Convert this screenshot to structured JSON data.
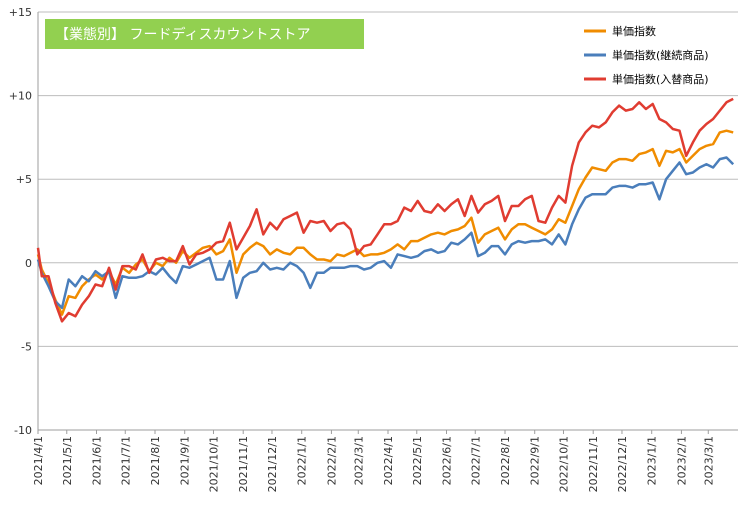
{
  "chart_data": {
    "type": "line",
    "title": "【業態別】 フードディスカウントストア",
    "title_bg": "#92d050",
    "ylim": [
      -10,
      15
    ],
    "yticks": [
      -10,
      -5,
      0,
      5,
      10,
      15
    ],
    "ytick_labels": [
      "-10",
      "-5",
      "0",
      "+5",
      "+10",
      "+15"
    ],
    "grid": "horizontal",
    "legend_position": "top-right",
    "xtick_labels": [
      "2021/4/1",
      "2021/5/1",
      "2021/6/1",
      "2021/7/1",
      "2021/8/1",
      "2021/9/1",
      "2021/10/1",
      "2021/11/1",
      "2021/12/1",
      "2022/1/1",
      "2022/2/1",
      "2022/3/1",
      "2022/4/1",
      "2022/5/1",
      "2022/6/1",
      "2022/7/1",
      "2022/8/1",
      "2022/9/1",
      "2022/10/1",
      "2022/11/1",
      "2022/12/1",
      "2023/1/1",
      "2023/2/1",
      "2023/3/1"
    ],
    "x": [
      "2021-04-01",
      "2021-04-05",
      "2021-04-12",
      "2021-04-19",
      "2021-04-26",
      "2021-05-03",
      "2021-05-10",
      "2021-05-17",
      "2021-05-24",
      "2021-05-31",
      "2021-06-07",
      "2021-06-14",
      "2021-06-21",
      "2021-06-28",
      "2021-07-05",
      "2021-07-12",
      "2021-07-19",
      "2021-07-26",
      "2021-08-02",
      "2021-08-09",
      "2021-08-16",
      "2021-08-23",
      "2021-08-30",
      "2021-09-06",
      "2021-09-13",
      "2021-09-20",
      "2021-09-27",
      "2021-10-04",
      "2021-10-11",
      "2021-10-18",
      "2021-10-25",
      "2021-11-01",
      "2021-11-08",
      "2021-11-15",
      "2021-11-22",
      "2021-11-29",
      "2021-12-06",
      "2021-12-13",
      "2021-12-20",
      "2021-12-27",
      "2022-01-03",
      "2022-01-10",
      "2022-01-17",
      "2022-01-24",
      "2022-01-31",
      "2022-02-07",
      "2022-02-14",
      "2022-02-21",
      "2022-02-28",
      "2022-03-07",
      "2022-03-14",
      "2022-03-21",
      "2022-03-28",
      "2022-04-04",
      "2022-04-11",
      "2022-04-18",
      "2022-04-25",
      "2022-05-02",
      "2022-05-09",
      "2022-05-16",
      "2022-05-23",
      "2022-05-30",
      "2022-06-06",
      "2022-06-13",
      "2022-06-20",
      "2022-06-27",
      "2022-07-04",
      "2022-07-11",
      "2022-07-18",
      "2022-07-25",
      "2022-08-01",
      "2022-08-08",
      "2022-08-15",
      "2022-08-22",
      "2022-08-29",
      "2022-09-05",
      "2022-09-12",
      "2022-09-19",
      "2022-09-26",
      "2022-10-03",
      "2022-10-10",
      "2022-10-17",
      "2022-10-24",
      "2022-10-31",
      "2022-11-07",
      "2022-11-14",
      "2022-11-21",
      "2022-11-28",
      "2022-12-05",
      "2022-12-12",
      "2022-12-19",
      "2022-12-26",
      "2023-01-02",
      "2023-01-09",
      "2023-01-16",
      "2023-01-23",
      "2023-01-30",
      "2023-02-06",
      "2023-02-13",
      "2023-02-20",
      "2023-02-27",
      "2023-03-06",
      "2023-03-13",
      "2023-03-20",
      "2023-03-27"
    ],
    "series": [
      {
        "name": "単価指数",
        "color": "#f08c00",
        "values": [
          0.5,
          -0.4,
          -1.2,
          -2.2,
          -3.1,
          -2.0,
          -2.1,
          -1.4,
          -1.0,
          -0.7,
          -1.0,
          -0.5,
          -1.3,
          -0.3,
          -0.6,
          -0.1,
          0.2,
          -0.5,
          0.0,
          -0.2,
          0.3,
          0.0,
          0.7,
          0.3,
          0.6,
          0.9,
          1.0,
          0.5,
          0.7,
          1.4,
          -0.6,
          0.5,
          0.9,
          1.2,
          1.0,
          0.5,
          0.8,
          0.6,
          0.5,
          0.9,
          0.9,
          0.5,
          0.2,
          0.2,
          0.1,
          0.5,
          0.4,
          0.6,
          0.8,
          0.4,
          0.5,
          0.5,
          0.6,
          0.8,
          1.1,
          0.8,
          1.3,
          1.3,
          1.5,
          1.7,
          1.8,
          1.7,
          1.9,
          2.0,
          2.2,
          2.7,
          1.2,
          1.7,
          1.9,
          2.1,
          1.4,
          2.0,
          2.3,
          2.3,
          2.1,
          1.9,
          1.7,
          2.0,
          2.6,
          2.4,
          3.4,
          4.4,
          5.1,
          5.7,
          5.6,
          5.5,
          6.0,
          6.2,
          6.2,
          6.1,
          6.5,
          6.6,
          6.8,
          5.8,
          6.7,
          6.6,
          6.8,
          6.0,
          6.4,
          6.8,
          7.0,
          7.1,
          7.8,
          7.9,
          7.8
        ]
      },
      {
        "name": "単価指数(継続商品)",
        "color": "#4a7ebb",
        "values": [
          0.2,
          -0.6,
          -1.4,
          -2.3,
          -2.7,
          -1.0,
          -1.4,
          -0.8,
          -1.1,
          -0.5,
          -0.8,
          -0.5,
          -2.1,
          -0.8,
          -0.9,
          -0.9,
          -0.8,
          -0.5,
          -0.7,
          -0.3,
          -0.8,
          -1.2,
          -0.2,
          -0.3,
          -0.1,
          0.1,
          0.3,
          -1.0,
          -1.0,
          0.1,
          -2.1,
          -0.9,
          -0.6,
          -0.5,
          0.0,
          -0.4,
          -0.3,
          -0.4,
          0.0,
          -0.2,
          -0.6,
          -1.5,
          -0.6,
          -0.6,
          -0.3,
          -0.3,
          -0.3,
          -0.2,
          -0.2,
          -0.4,
          -0.3,
          0.0,
          0.1,
          -0.3,
          0.5,
          0.4,
          0.3,
          0.4,
          0.7,
          0.8,
          0.6,
          0.7,
          1.2,
          1.1,
          1.4,
          1.8,
          0.4,
          0.6,
          1.0,
          1.0,
          0.5,
          1.1,
          1.3,
          1.2,
          1.3,
          1.3,
          1.4,
          1.1,
          1.7,
          1.1,
          2.3,
          3.2,
          3.9,
          4.1,
          4.1,
          4.1,
          4.5,
          4.6,
          4.6,
          4.5,
          4.7,
          4.7,
          4.8,
          3.8,
          5.0,
          5.5,
          6.0,
          5.3,
          5.4,
          5.7,
          5.9,
          5.7,
          6.2,
          6.3,
          5.9
        ]
      },
      {
        "name": "単価指数(入替商品)",
        "color": "#e03c31",
        "values": [
          0.9,
          -0.8,
          -0.8,
          -2.4,
          -3.5,
          -3.0,
          -3.2,
          -2.5,
          -2.0,
          -1.3,
          -1.4,
          -0.3,
          -1.6,
          -0.2,
          -0.2,
          -0.4,
          0.5,
          -0.6,
          0.2,
          0.3,
          0.1,
          0.1,
          1.0,
          -0.1,
          0.5,
          0.6,
          0.8,
          1.2,
          1.3,
          2.4,
          0.8,
          1.5,
          2.2,
          3.2,
          1.7,
          2.4,
          2.0,
          2.6,
          2.8,
          3.0,
          1.8,
          2.5,
          2.4,
          2.5,
          1.9,
          2.3,
          2.4,
          2.0,
          0.5,
          1.0,
          1.1,
          1.7,
          2.3,
          2.3,
          2.5,
          3.3,
          3.1,
          3.7,
          3.1,
          3.0,
          3.5,
          3.1,
          3.5,
          3.8,
          2.8,
          4.0,
          3.0,
          3.5,
          3.7,
          4.0,
          2.5,
          3.4,
          3.4,
          3.8,
          4.0,
          2.5,
          2.4,
          3.3,
          4.0,
          3.6,
          5.8,
          7.2,
          7.8,
          8.2,
          8.1,
          8.4,
          9.0,
          9.4,
          9.1,
          9.2,
          9.6,
          9.2,
          9.5,
          8.6,
          8.4,
          8.0,
          7.9,
          6.4,
          7.2,
          7.9,
          8.3,
          8.6,
          9.1,
          9.6,
          9.8
        ]
      }
    ]
  }
}
